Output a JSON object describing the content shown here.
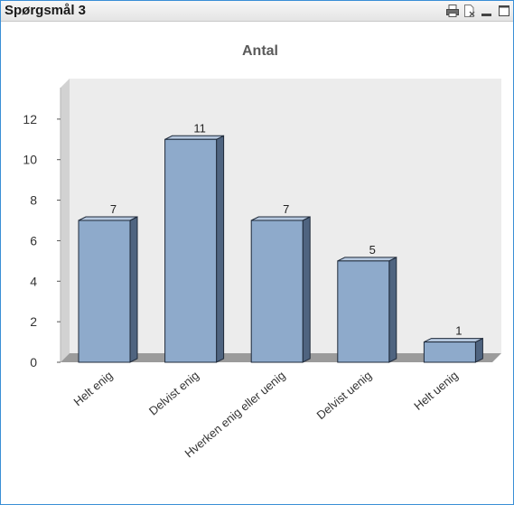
{
  "window": {
    "title": "Spørgsmål 3",
    "icons": [
      "print-icon",
      "export-excel-icon",
      "minimize-icon",
      "maximize-icon"
    ]
  },
  "chart_data": {
    "type": "bar",
    "title": "Antal",
    "categories": [
      "Helt enig",
      "Delvist enig",
      "Hverken enig eller uenig",
      "Delvist uenig",
      "Helt uenig"
    ],
    "values": [
      7,
      11,
      7,
      5,
      1
    ],
    "yticks": [
      0,
      2,
      4,
      6,
      8,
      10,
      12
    ],
    "ylim": [
      0,
      14
    ],
    "bar_color": "#8eaacb",
    "grid": false,
    "legend": "none"
  }
}
